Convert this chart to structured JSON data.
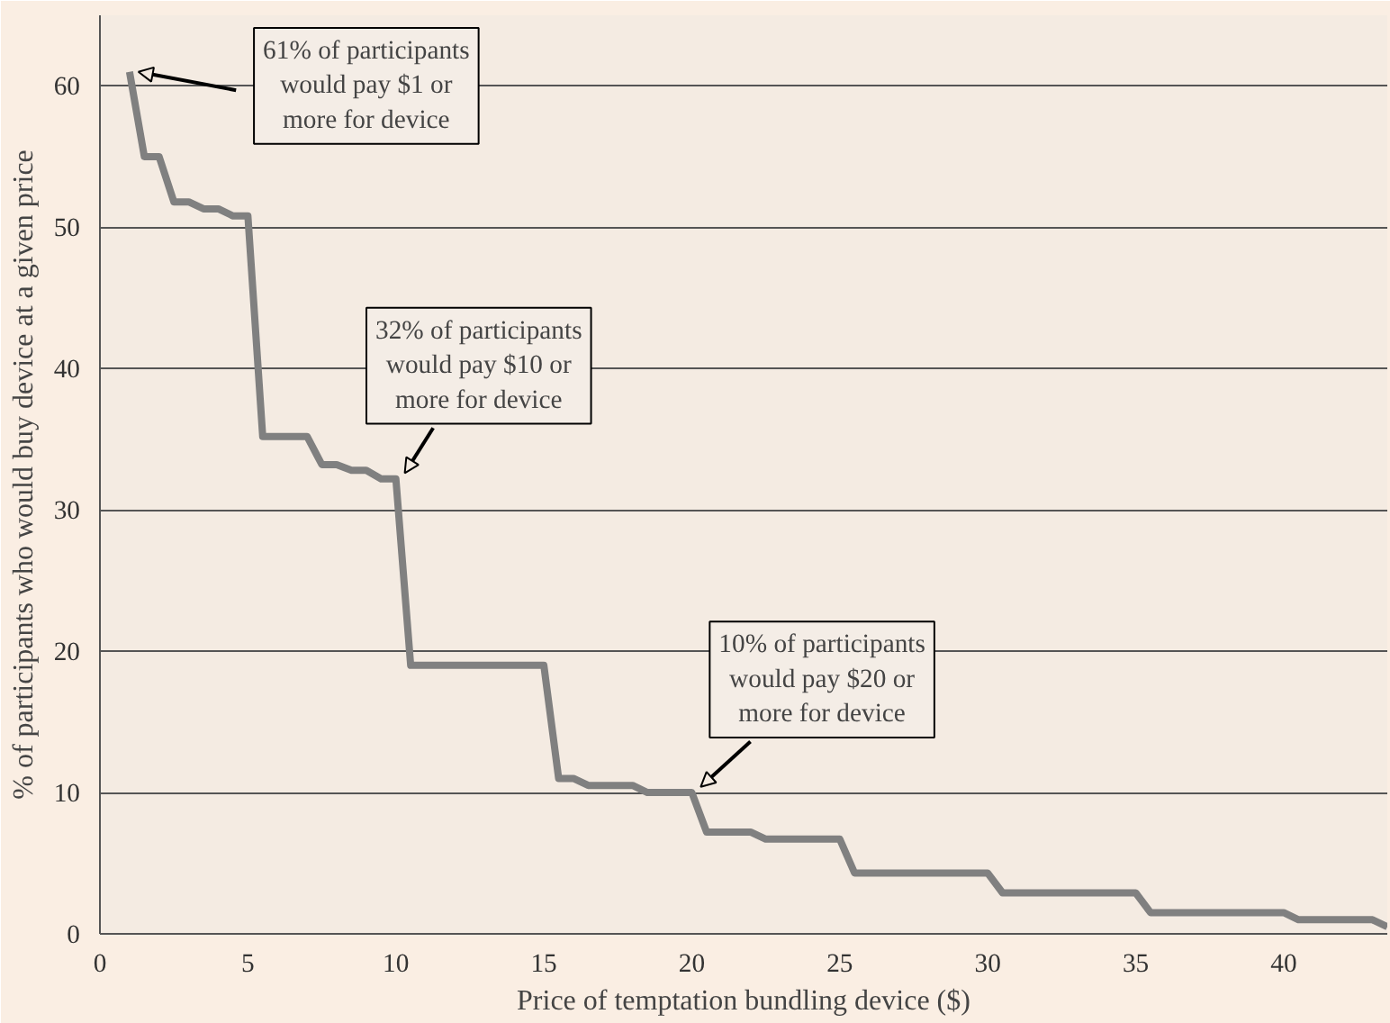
{
  "chart_data": {
    "type": "line",
    "xlabel": "Price of temptation bundling device ($)",
    "ylabel": "% of participants who would buy device at a given price",
    "x": [
      1,
      1.5,
      2,
      2.5,
      3,
      3.5,
      4,
      4.5,
      5,
      5.5,
      6,
      7,
      7.5,
      8,
      8.5,
      9,
      9.5,
      10,
      10.5,
      15,
      15.5,
      16,
      16.5,
      18,
      18.5,
      20,
      20.5,
      22,
      22.5,
      25,
      25.5,
      30,
      30.5,
      35,
      35.5,
      40,
      40.5,
      43,
      43.5
    ],
    "series": [
      {
        "color": "#808080",
        "values": [
          61,
          55,
          55,
          51.8,
          51.8,
          51.3,
          51.3,
          50.8,
          50.8,
          35.2,
          35.2,
          35.2,
          33.2,
          33.2,
          32.8,
          32.8,
          32.2,
          32.2,
          19,
          19,
          11,
          11,
          10.5,
          10.5,
          10,
          10,
          7.2,
          7.2,
          6.7,
          6.7,
          4.3,
          4.3,
          2.9,
          2.9,
          1.5,
          1.5,
          1,
          1,
          0.5
        ]
      }
    ],
    "xlim": [
      0,
      43.5
    ],
    "ylim": [
      0,
      65
    ],
    "xticks": [
      0,
      5,
      10,
      15,
      20,
      25,
      30,
      35,
      40
    ],
    "yticks": [
      0,
      10,
      20,
      30,
      40,
      50,
      60
    ],
    "grid": "y",
    "marker": "none",
    "line_style": "solid",
    "annotations": [
      {
        "text": "61% of participants would pay $1 or more for device",
        "x": 1,
        "y": 61
      },
      {
        "text": "32% of participants would pay $10 or more for device",
        "x": 10,
        "y": 32.2
      },
      {
        "text": "10% of participants would pay $20 or more for device",
        "x": 20,
        "y": 10
      }
    ]
  }
}
